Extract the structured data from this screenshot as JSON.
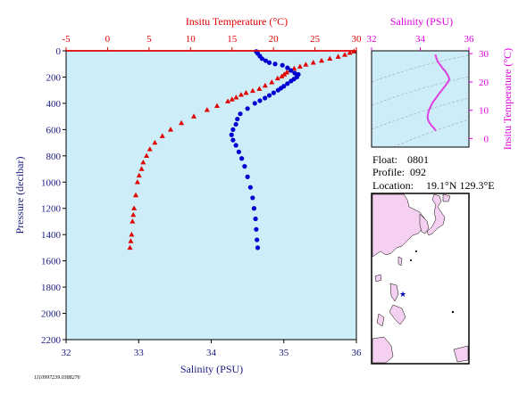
{
  "colors": {
    "plot_bg": "#cdeef8",
    "temperature": "#e00000",
    "salinity": "#0000d0",
    "pressure_axis": "#1a1a80",
    "ts_axis": "#e000e0",
    "ts_curve": "#e040e0",
    "land": "#f6d0f0",
    "star": "#0000c0"
  },
  "chart_data": [
    {
      "type": "scatter",
      "panel": "profile",
      "ylabel": "Pressure (decibar)",
      "xlabel": "Salinity (PSU)",
      "x2label": "Insitu Temperature (°C)",
      "y_ticks": [
        "0",
        "200",
        "400",
        "600",
        "800",
        "1000",
        "1200",
        "1400",
        "1600",
        "1800",
        "2000",
        "2200"
      ],
      "x_ticks": [
        "32",
        "33",
        "34",
        "35",
        "36"
      ],
      "x2_ticks": [
        "-5",
        "0",
        "5",
        "10",
        "15",
        "20",
        "25",
        "30"
      ],
      "ylim": [
        2200,
        0
      ],
      "xlim": [
        32,
        36
      ],
      "x2lim": [
        -5,
        30
      ],
      "series": [
        {
          "name": "Insitu Temperature",
          "marker": "triangle",
          "axis": "x2",
          "points": [
            [
              29.7,
              5
            ],
            [
              29.2,
              15
            ],
            [
              28.6,
              30
            ],
            [
              27.8,
              45
            ],
            [
              26.8,
              60
            ],
            [
              25.8,
              75
            ],
            [
              24.8,
              90
            ],
            [
              23.9,
              105
            ],
            [
              23.2,
              120
            ],
            [
              22.5,
              135
            ],
            [
              22.0,
              150
            ],
            [
              21.6,
              165
            ],
            [
              21.3,
              180
            ],
            [
              21.0,
              195
            ],
            [
              20.5,
              210
            ],
            [
              19.8,
              240
            ],
            [
              19.0,
              265
            ],
            [
              18.3,
              290
            ],
            [
              17.5,
              305
            ],
            [
              16.7,
              320
            ],
            [
              16.1,
              335
            ],
            [
              15.5,
              355
            ],
            [
              15.0,
              370
            ],
            [
              14.5,
              385
            ],
            [
              13.2,
              420
            ],
            [
              12.0,
              450
            ],
            [
              10.4,
              500
            ],
            [
              8.9,
              550
            ],
            [
              7.6,
              600
            ],
            [
              6.6,
              650
            ],
            [
              5.7,
              700
            ],
            [
              5.1,
              750
            ],
            [
              4.7,
              800
            ],
            [
              4.3,
              850
            ],
            [
              4.1,
              900
            ],
            [
              3.8,
              950
            ],
            [
              3.6,
              1000
            ],
            [
              3.4,
              1100
            ],
            [
              3.2,
              1200
            ],
            [
              3.1,
              1250
            ],
            [
              3.0,
              1300
            ],
            [
              2.9,
              1400
            ],
            [
              2.8,
              1450
            ],
            [
              2.7,
              1500
            ]
          ]
        },
        {
          "name": "Salinity",
          "marker": "circle",
          "axis": "x",
          "points": [
            [
              34.62,
              5
            ],
            [
              34.64,
              20
            ],
            [
              34.67,
              40
            ],
            [
              34.7,
              60
            ],
            [
              34.75,
              75
            ],
            [
              34.8,
              90
            ],
            [
              34.88,
              100
            ],
            [
              34.98,
              110
            ],
            [
              35.05,
              130
            ],
            [
              35.1,
              150
            ],
            [
              35.15,
              170
            ],
            [
              35.2,
              180
            ],
            [
              35.18,
              200
            ],
            [
              35.14,
              215
            ],
            [
              35.1,
              230
            ],
            [
              35.05,
              250
            ],
            [
              35.0,
              270
            ],
            [
              34.96,
              285
            ],
            [
              34.92,
              300
            ],
            [
              34.86,
              320
            ],
            [
              34.8,
              340
            ],
            [
              34.74,
              360
            ],
            [
              34.67,
              380
            ],
            [
              34.6,
              400
            ],
            [
              34.5,
              440
            ],
            [
              34.4,
              480
            ],
            [
              34.36,
              520
            ],
            [
              34.34,
              560
            ],
            [
              34.3,
              600
            ],
            [
              34.28,
              640
            ],
            [
              34.3,
              680
            ],
            [
              34.34,
              720
            ],
            [
              34.38,
              770
            ],
            [
              34.42,
              820
            ],
            [
              34.46,
              880
            ],
            [
              34.5,
              960
            ],
            [
              34.54,
              1040
            ],
            [
              34.57,
              1120
            ],
            [
              34.59,
              1200
            ],
            [
              34.61,
              1280
            ],
            [
              34.62,
              1360
            ],
            [
              34.63,
              1440
            ],
            [
              34.64,
              1500
            ]
          ]
        }
      ]
    },
    {
      "type": "line",
      "panel": "ts-diagram",
      "xlabel": "Salinity (PSU)",
      "ylabel": "Insitu Temperature (°C)",
      "x_ticks": [
        "32",
        "34",
        "36"
      ],
      "y_ticks": [
        "0",
        "10",
        "20",
        "30"
      ],
      "xlim": [
        32,
        36
      ],
      "ylim": [
        -3,
        31
      ],
      "series": [
        {
          "points": [
            [
              34.62,
              29.7
            ],
            [
              34.66,
              28.5
            ],
            [
              34.72,
              27.2
            ],
            [
              34.82,
              26.0
            ],
            [
              34.92,
              24.8
            ],
            [
              35.02,
              23.9
            ],
            [
              35.1,
              22.8
            ],
            [
              35.16,
              21.8
            ],
            [
              35.2,
              21.0
            ],
            [
              35.14,
              20.0
            ],
            [
              35.05,
              18.9
            ],
            [
              34.95,
              17.8
            ],
            [
              34.84,
              16.6
            ],
            [
              34.72,
              15.2
            ],
            [
              34.6,
              13.8
            ],
            [
              34.5,
              12.6
            ],
            [
              34.42,
              11.2
            ],
            [
              34.36,
              10.0
            ],
            [
              34.32,
              8.8
            ],
            [
              34.3,
              7.6
            ],
            [
              34.32,
              6.6
            ],
            [
              34.38,
              5.6
            ],
            [
              34.45,
              4.7
            ],
            [
              34.52,
              4.1
            ],
            [
              34.57,
              3.6
            ],
            [
              34.61,
              3.1
            ],
            [
              34.64,
              2.7
            ]
          ]
        }
      ]
    }
  ],
  "info": {
    "float_label": "Float:",
    "float_value": "0801",
    "profile_label": "Profile:",
    "profile_value": "092",
    "location_label": "Location:",
    "location_value": "19.1°N  129.3°E",
    "footer_code": "1110997239.0388276"
  },
  "map": {
    "marker_icon": "star-icon",
    "marker": {
      "lat": 19.1,
      "lon": 129.3
    }
  }
}
